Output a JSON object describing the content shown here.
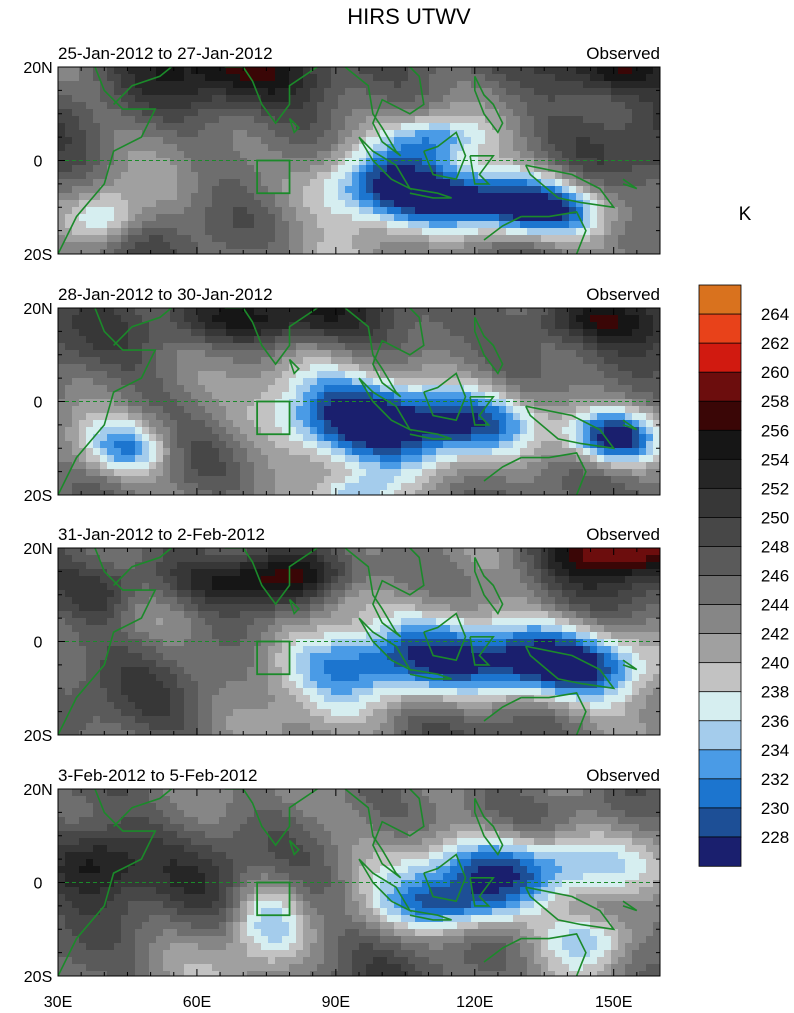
{
  "chart_data": {
    "type": "heatmap",
    "title": "HIRS UTWV",
    "units": "K",
    "x_tick_labels": [
      "30E",
      "60E",
      "90E",
      "120E",
      "150E"
    ],
    "x_values": [
      30,
      60,
      90,
      120,
      150
    ],
    "xlim": [
      30,
      160
    ],
    "y_tick_labels": [
      "20N",
      "0",
      "20S"
    ],
    "y_values": [
      20,
      0,
      -20
    ],
    "ylim": [
      -20,
      20
    ],
    "levels": [
      228,
      230,
      232,
      234,
      236,
      238,
      240,
      242,
      244,
      246,
      248,
      250,
      252,
      254,
      256,
      258,
      260,
      262,
      264
    ],
    "colors": [
      "#1a1f6e",
      "#1d4f96",
      "#1c75cf",
      "#4a9be6",
      "#a4ccec",
      "#d6eef0",
      "#c2c2c2",
      "#a0a0a0",
      "#868686",
      "#6e6e6e",
      "#5a5a5a",
      "#474747",
      "#373737",
      "#262626",
      "#161616",
      "#3a0606",
      "#6c0d0d",
      "#d11a10",
      "#e8421a",
      "#d9721e"
    ],
    "overlays": [
      "coastlines",
      "equator dashed line",
      "box region"
    ],
    "panels": [
      {
        "left_title": "25-Jan-2012 to 27-Jan-2012",
        "right_title": "Observed"
      },
      {
        "left_title": "28-Jan-2012 to 30-Jan-2012",
        "right_title": "Observed"
      },
      {
        "left_title": "31-Jan-2012 to 2-Feb-2012",
        "right_title": "Observed"
      },
      {
        "left_title": "3-Feb-2012 to 5-Feb-2012",
        "right_title": "Observed"
      }
    ]
  }
}
